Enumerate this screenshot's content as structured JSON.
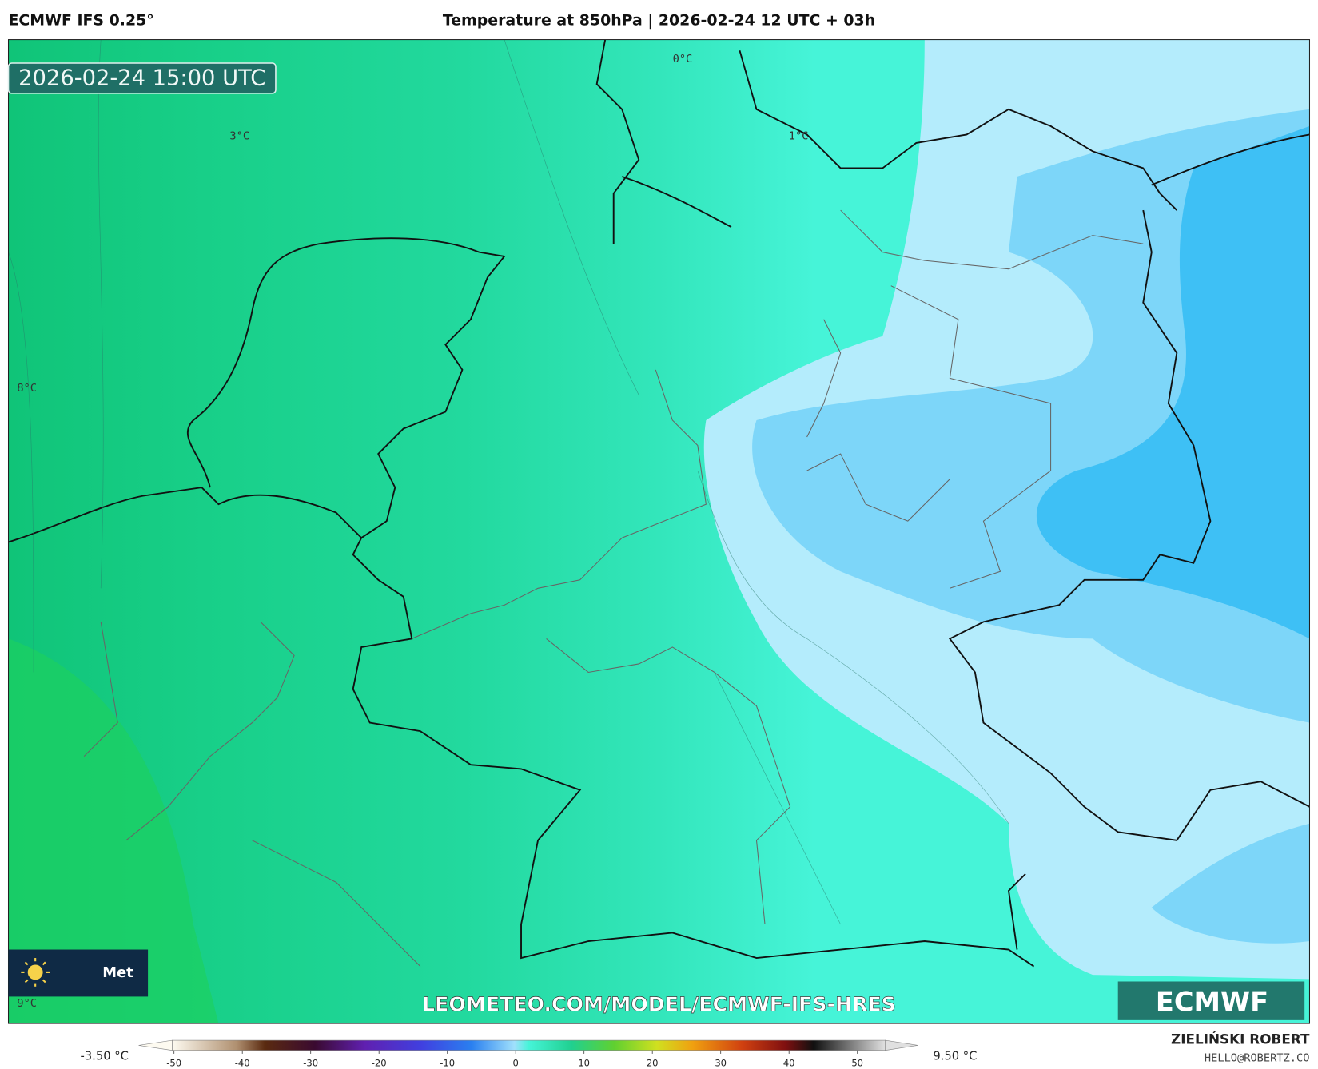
{
  "header": {
    "model": "ECMWF IFS 0.25°",
    "title": "Temperature at 850hPa | 2026-02-24 12 UTC + 03h"
  },
  "map": {
    "valid_time": "2026-02-24 15:00 UTC",
    "contour_labels": [
      "0°C",
      "1°C",
      "3°C",
      "8°C",
      "9°C"
    ],
    "badge": "Met",
    "watermark": "LEOMETEO.COM/MODEL/ECMWF-IFS-HRES",
    "logo": "ECMWF"
  },
  "colorbar": {
    "ticks": [
      -50,
      -40,
      -30,
      -20,
      -10,
      0,
      10,
      20,
      30,
      40,
      50
    ],
    "min_label": "-3.50 °C",
    "max_label": "9.50 °C"
  },
  "footer": {
    "author": "ZIELIŃSKI ROBERT",
    "email": "HELLO@ROBERTZ.CO"
  }
}
